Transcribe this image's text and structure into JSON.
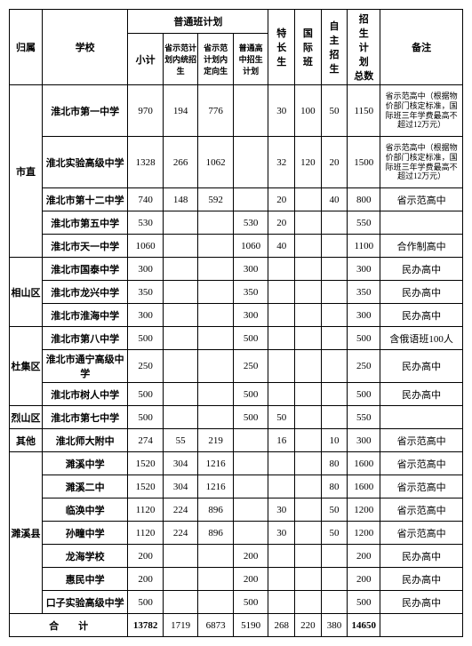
{
  "headers": {
    "h1": "归属",
    "h2": "学校",
    "h3": "普通班计划",
    "h3a": "小计",
    "h3b": "省示范计\n划内统招\n生",
    "h3c": "省示范\n计划内\n定向生",
    "h3d": "普通高\n中招生\n计划",
    "h4": "特\n长\n生",
    "h5": "国\n际\n班",
    "h6": "自\n主\n招\n生",
    "h7": "招\n生\n计\n划\n总数",
    "h8": "备注"
  },
  "groups": [
    {
      "name": "市直",
      "rows": [
        {
          "school": "淮北市第一中学",
          "sub": "970",
          "a": "194",
          "b": "776",
          "c": "",
          "tc": "30",
          "gj": "100",
          "zz": "50",
          "total": "1150",
          "note": "省示范高中（根据物价部门核定标准，国际班三年学费最高不超过12万元）",
          "tall": true
        },
        {
          "school": "淮北实验高级中学",
          "sub": "1328",
          "a": "266",
          "b": "1062",
          "c": "",
          "tc": "32",
          "gj": "120",
          "zz": "20",
          "total": "1500",
          "note": "省示范高中（根据物价部门核定标准，国际班三年学费最高不超过12万元）",
          "tall": true
        },
        {
          "school": "淮北市第十二中学",
          "sub": "740",
          "a": "148",
          "b": "592",
          "c": "",
          "tc": "20",
          "gj": "",
          "zz": "40",
          "total": "800",
          "note": "省示范高中"
        },
        {
          "school": "淮北市第五中学",
          "sub": "530",
          "a": "",
          "b": "",
          "c": "530",
          "tc": "20",
          "gj": "",
          "zz": "",
          "total": "550",
          "note": ""
        },
        {
          "school": "淮北市天一中学",
          "sub": "1060",
          "a": "",
          "b": "",
          "c": "1060",
          "tc": "40",
          "gj": "",
          "zz": "",
          "total": "1100",
          "note": "合作制高中"
        }
      ]
    },
    {
      "name": "相山区",
      "rows": [
        {
          "school": "淮北市国泰中学",
          "sub": "300",
          "a": "",
          "b": "",
          "c": "300",
          "tc": "",
          "gj": "",
          "zz": "",
          "total": "300",
          "note": "民办高中"
        },
        {
          "school": "淮北市龙兴中学",
          "sub": "350",
          "a": "",
          "b": "",
          "c": "350",
          "tc": "",
          "gj": "",
          "zz": "",
          "total": "350",
          "note": "民办高中"
        },
        {
          "school": "淮北市淮海中学",
          "sub": "300",
          "a": "",
          "b": "",
          "c": "300",
          "tc": "",
          "gj": "",
          "zz": "",
          "total": "300",
          "note": "民办高中"
        }
      ]
    },
    {
      "name": "杜集区",
      "rows": [
        {
          "school": "淮北市第八中学",
          "sub": "500",
          "a": "",
          "b": "",
          "c": "500",
          "tc": "",
          "gj": "",
          "zz": "",
          "total": "500",
          "note": "含俄语班100人"
        },
        {
          "school": "淮北市通宁高级中学",
          "sub": "250",
          "a": "",
          "b": "",
          "c": "250",
          "tc": "",
          "gj": "",
          "zz": "",
          "total": "250",
          "note": "民办高中"
        },
        {
          "school": "淮北市树人中学",
          "sub": "500",
          "a": "",
          "b": "",
          "c": "500",
          "tc": "",
          "gj": "",
          "zz": "",
          "total": "500",
          "note": "民办高中"
        }
      ]
    },
    {
      "name": "烈山区",
      "rows": [
        {
          "school": "淮北市第七中学",
          "sub": "500",
          "a": "",
          "b": "",
          "c": "500",
          "tc": "50",
          "gj": "",
          "zz": "",
          "total": "550",
          "note": ""
        }
      ]
    },
    {
      "name": "其他",
      "rows": [
        {
          "school": "淮北师大附中",
          "sub": "274",
          "a": "55",
          "b": "219",
          "c": "",
          "tc": "16",
          "gj": "",
          "zz": "10",
          "total": "300",
          "note": "省示范高中"
        }
      ]
    },
    {
      "name": "濉溪县",
      "rows": [
        {
          "school": "濉溪中学",
          "sub": "1520",
          "a": "304",
          "b": "1216",
          "c": "",
          "tc": "",
          "gj": "",
          "zz": "80",
          "total": "1600",
          "note": "省示范高中"
        },
        {
          "school": "濉溪二中",
          "sub": "1520",
          "a": "304",
          "b": "1216",
          "c": "",
          "tc": "",
          "gj": "",
          "zz": "80",
          "total": "1600",
          "note": "省示范高中"
        },
        {
          "school": "临涣中学",
          "sub": "1120",
          "a": "224",
          "b": "896",
          "c": "",
          "tc": "30",
          "gj": "",
          "zz": "50",
          "total": "1200",
          "note": "省示范高中"
        },
        {
          "school": "孙疃中学",
          "sub": "1120",
          "a": "224",
          "b": "896",
          "c": "",
          "tc": "30",
          "gj": "",
          "zz": "50",
          "total": "1200",
          "note": "省示范高中"
        },
        {
          "school": "龙海学校",
          "sub": "200",
          "a": "",
          "b": "",
          "c": "200",
          "tc": "",
          "gj": "",
          "zz": "",
          "total": "200",
          "note": "民办高中"
        },
        {
          "school": "惠民中学",
          "sub": "200",
          "a": "",
          "b": "",
          "c": "200",
          "tc": "",
          "gj": "",
          "zz": "",
          "total": "200",
          "note": "民办高中"
        },
        {
          "school": "口子实验高级中学",
          "sub": "500",
          "a": "",
          "b": "",
          "c": "500",
          "tc": "",
          "gj": "",
          "zz": "",
          "total": "500",
          "note": "民办高中"
        }
      ]
    }
  ],
  "total_row": {
    "label": "合　　计",
    "sub": "13782",
    "a": "1719",
    "b": "6873",
    "c": "5190",
    "tc": "268",
    "gj": "220",
    "zz": "380",
    "total": "14650",
    "note": ""
  }
}
